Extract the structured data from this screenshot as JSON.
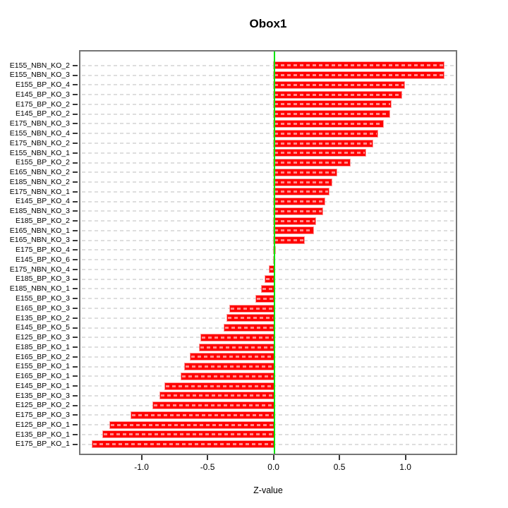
{
  "chart_data": {
    "type": "bar",
    "orientation": "horizontal",
    "title": "Obox1",
    "xlabel": "Z-value",
    "ylabel": "",
    "xlim": [
      -1.47,
      1.39
    ],
    "x_ticks": [
      -1.0,
      -0.5,
      0.0,
      0.5,
      1.0
    ],
    "x_tick_labels": [
      "-1.0",
      "-0.5",
      "0.0",
      "0.5",
      "1.0"
    ],
    "grid": "horizontal dashed gridline per category row",
    "legend": "none",
    "zero_reference_line": 0,
    "categories": [
      "E155_NBN_KO_2",
      "E155_NBN_KO_3",
      "E155_BP_KO_4",
      "E145_BP_KO_3",
      "E175_BP_KO_2",
      "E145_BP_KO_2",
      "E175_NBN_KO_3",
      "E155_NBN_KO_4",
      "E175_NBN_KO_2",
      "E155_NBN_KO_1",
      "E155_BP_KO_2",
      "E165_NBN_KO_2",
      "E185_NBN_KO_2",
      "E175_NBN_KO_1",
      "E145_BP_KO_4",
      "E185_NBN_KO_3",
      "E185_BP_KO_2",
      "E165_NBN_KO_1",
      "E165_NBN_KO_3",
      "E175_BP_KO_4",
      "E145_BP_KO_6",
      "E175_NBN_KO_4",
      "E185_BP_KO_3",
      "E185_NBN_KO_1",
      "E155_BP_KO_3",
      "E165_BP_KO_3",
      "E135_BP_KO_2",
      "E145_BP_KO_5",
      "E125_BP_KO_3",
      "E185_BP_KO_1",
      "E165_BP_KO_2",
      "E155_BP_KO_1",
      "E165_BP_KO_1",
      "E145_BP_KO_1",
      "E135_BP_KO_3",
      "E125_BP_KO_2",
      "E175_BP_KO_3",
      "E125_BP_KO_1",
      "E135_BP_KO_1",
      "E175_BP_KO_1"
    ],
    "values": [
      1.29,
      1.29,
      0.99,
      0.97,
      0.89,
      0.88,
      0.83,
      0.79,
      0.75,
      0.7,
      0.58,
      0.48,
      0.44,
      0.42,
      0.39,
      0.37,
      0.32,
      0.3,
      0.23,
      0.015,
      0.005,
      -0.03,
      -0.06,
      -0.09,
      -0.13,
      -0.33,
      -0.35,
      -0.37,
      -0.55,
      -0.56,
      -0.63,
      -0.67,
      -0.7,
      -0.82,
      -0.86,
      -0.91,
      -1.08,
      -1.24,
      -1.29,
      -1.37
    ],
    "colors": {
      "bar": "#ff0000",
      "bar_inner_dash": "rgba(255,255,255,0.55)",
      "zero_line": "#00e400",
      "gridline": "#dedede",
      "plot_border": "#757575",
      "tick": "#383838",
      "text": "#000000",
      "background": "#ffffff"
    }
  }
}
